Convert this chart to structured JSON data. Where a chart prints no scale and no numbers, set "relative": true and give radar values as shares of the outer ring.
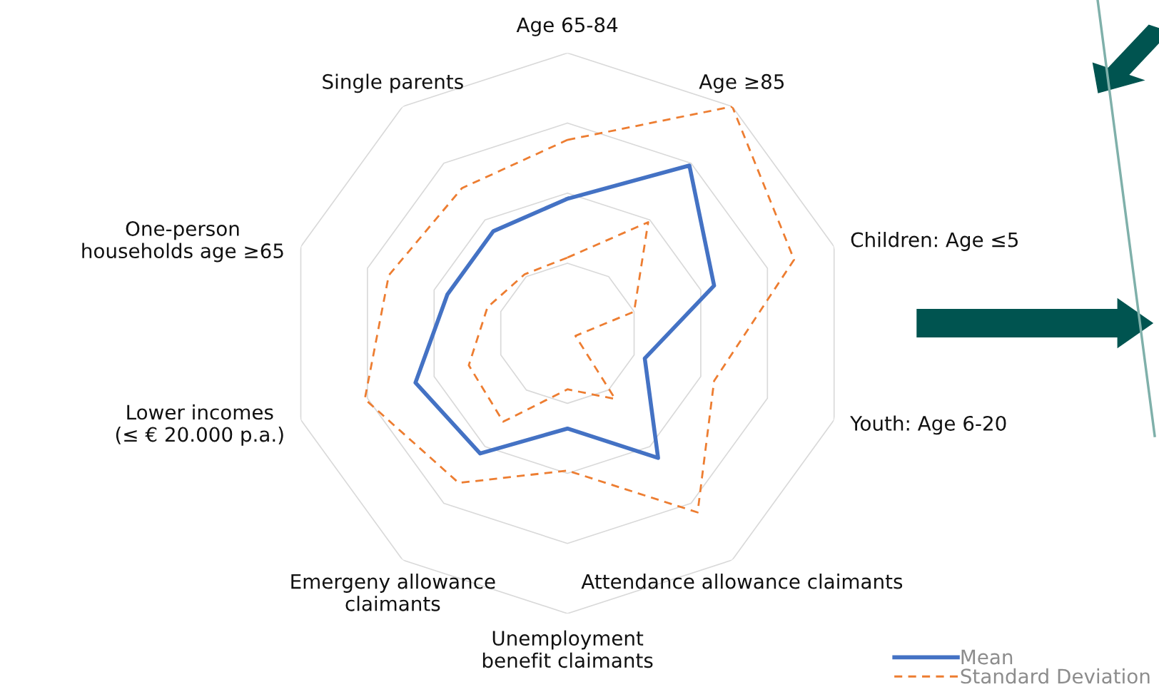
{
  "chart_data": {
    "type": "radar",
    "relative": true,
    "grid": true,
    "legend": "bottom right",
    "categories": [
      "Age 65-84",
      "Age ≥85",
      "Children: Age ≤5",
      "Youth: Age 6-20",
      "Attendance allowance claimants",
      "Unemployment\nbenefit claimants",
      "Emergeny allowance\nclaimants",
      "Lower incomes\n(≤ € 20.000 p.a.)",
      "One-person\nhouseholds age ≥65",
      "Single parents"
    ],
    "series": [
      {
        "name": "Mean",
        "color": "#4472c4",
        "line_style": "solid",
        "values": [
          0.48,
          0.74,
          0.55,
          0.29,
          0.55,
          0.34,
          0.53,
          0.57,
          0.45,
          0.45
        ]
      },
      {
        "name": "Standard Deviation",
        "color": "#ed7d31",
        "line_style": "dashed",
        "values": [
          0.69,
          1.0,
          0.85,
          0.55,
          0.79,
          0.49,
          0.66,
          0.76,
          0.67,
          0.64
        ]
      },
      {
        "color": "#ed7d31",
        "line_style": "dashed",
        "values": [
          0.27,
          0.49,
          0.25,
          0.03,
          0.29,
          0.2,
          0.39,
          0.37,
          0.3,
          0.26
        ]
      }
    ]
  }
}
